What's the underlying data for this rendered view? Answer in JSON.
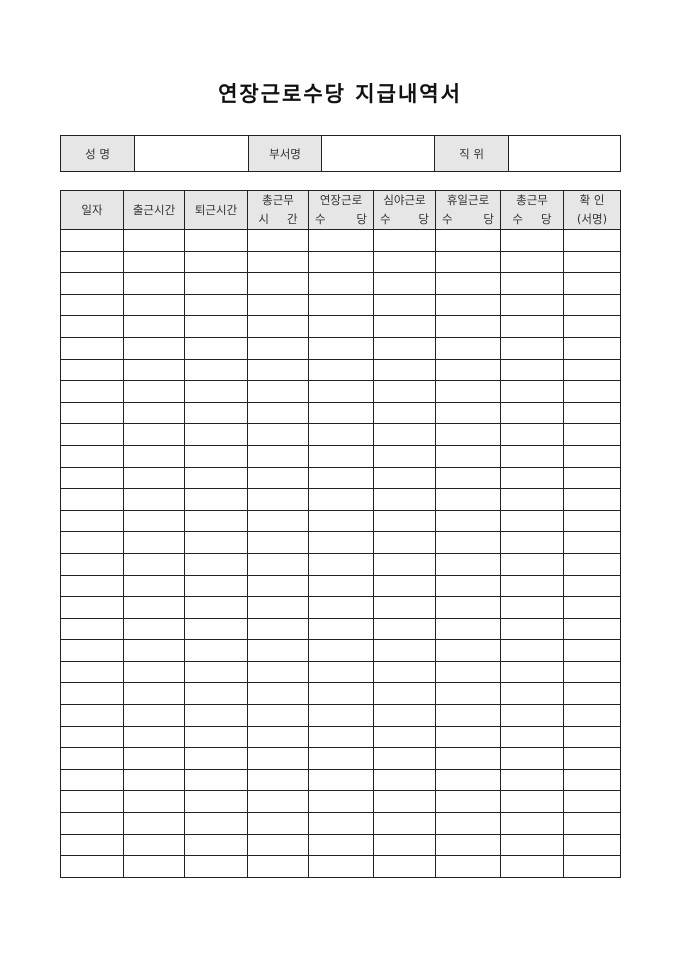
{
  "title": "연장근로수당 지급내역서",
  "info": {
    "name_label": "성 명",
    "name_value": "",
    "dept_label": "부서명",
    "dept_value": "",
    "position_label": "직 위",
    "position_value": ""
  },
  "columns": [
    {
      "line1": "일자"
    },
    {
      "line1": "출근시간"
    },
    {
      "line1": "퇴근시간"
    },
    {
      "line1": "총근무",
      "line2a": "시",
      "line2b": "간"
    },
    {
      "line1": "연장근로",
      "line2a": "수",
      "line2b": "당"
    },
    {
      "line1": "심야근로",
      "line2a": "수",
      "line2b": "당"
    },
    {
      "line1": "휴일근로",
      "line2a": "수",
      "line2b": "당"
    },
    {
      "line1": "총근무",
      "line2a": "수",
      "line2b": "당"
    },
    {
      "line1": "확 인",
      "line2": "(서명)"
    }
  ],
  "row_count": 30
}
